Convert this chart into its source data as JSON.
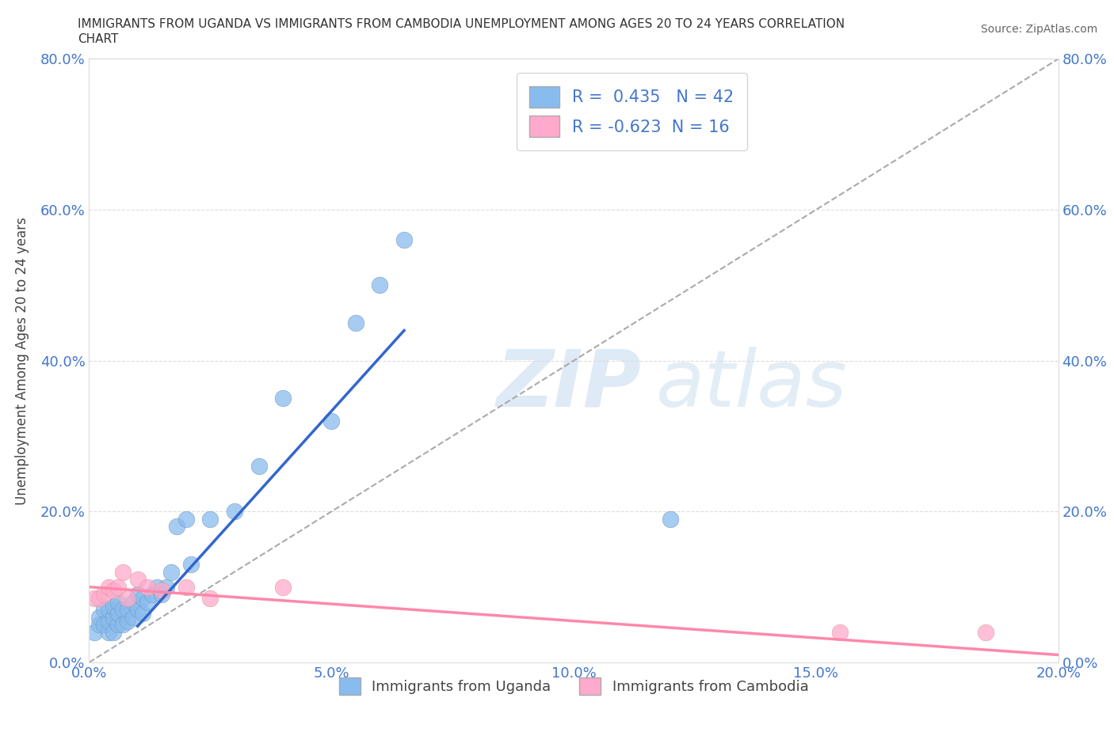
{
  "title_line1": "IMMIGRANTS FROM UGANDA VS IMMIGRANTS FROM CAMBODIA UNEMPLOYMENT AMONG AGES 20 TO 24 YEARS CORRELATION",
  "title_line2": "CHART",
  "source": "Source: ZipAtlas.com",
  "ylabel": "Unemployment Among Ages 20 to 24 years",
  "legend_label1": "Immigrants from Uganda",
  "legend_label2": "Immigrants from Cambodia",
  "r1": 0.435,
  "n1": 42,
  "r2": -0.623,
  "n2": 16,
  "color_uganda": "#88BBEE",
  "color_cambodia": "#FFAACC",
  "xlim": [
    0.0,
    0.2
  ],
  "ylim": [
    0.0,
    0.8
  ],
  "xticks": [
    0.0,
    0.05,
    0.1,
    0.15,
    0.2
  ],
  "yticks": [
    0.0,
    0.2,
    0.4,
    0.6,
    0.8
  ],
  "xtick_labels": [
    "0.0%",
    "5.0%",
    "10.0%",
    "15.0%",
    "20.0%"
  ],
  "ytick_labels": [
    "0.0%",
    "20.0%",
    "40.0%",
    "60.0%",
    "80.0%"
  ],
  "uganda_x": [
    0.001,
    0.002,
    0.002,
    0.003,
    0.003,
    0.004,
    0.004,
    0.004,
    0.005,
    0.005,
    0.005,
    0.006,
    0.006,
    0.006,
    0.007,
    0.007,
    0.008,
    0.008,
    0.009,
    0.009,
    0.01,
    0.01,
    0.011,
    0.011,
    0.012,
    0.013,
    0.014,
    0.015,
    0.016,
    0.017,
    0.018,
    0.02,
    0.021,
    0.025,
    0.03,
    0.035,
    0.04,
    0.05,
    0.055,
    0.06,
    0.065,
    0.12
  ],
  "uganda_y": [
    0.04,
    0.05,
    0.06,
    0.05,
    0.07,
    0.04,
    0.055,
    0.07,
    0.04,
    0.06,
    0.075,
    0.05,
    0.065,
    0.08,
    0.05,
    0.07,
    0.055,
    0.07,
    0.06,
    0.08,
    0.07,
    0.09,
    0.065,
    0.085,
    0.08,
    0.09,
    0.1,
    0.09,
    0.1,
    0.12,
    0.18,
    0.19,
    0.13,
    0.19,
    0.2,
    0.26,
    0.35,
    0.32,
    0.45,
    0.5,
    0.56,
    0.19
  ],
  "cambodia_x": [
    0.001,
    0.002,
    0.003,
    0.004,
    0.005,
    0.006,
    0.007,
    0.008,
    0.01,
    0.012,
    0.015,
    0.02,
    0.025,
    0.04,
    0.155,
    0.185
  ],
  "cambodia_y": [
    0.085,
    0.085,
    0.09,
    0.1,
    0.095,
    0.1,
    0.12,
    0.085,
    0.11,
    0.1,
    0.095,
    0.1,
    0.085,
    0.1,
    0.04,
    0.04
  ],
  "uganda_line_x": [
    0.01,
    0.065
  ],
  "uganda_line_y": [
    0.048,
    0.44
  ],
  "cambodia_line_x": [
    0.0,
    0.2
  ],
  "cambodia_line_y": [
    0.1,
    0.01
  ],
  "watermark_zip": "ZIP",
  "watermark_atlas": "atlas",
  "background_color": "#ffffff",
  "tick_color": "#4477CC",
  "grid_color": "#dddddd",
  "ref_line_color": "#aaaaaa",
  "uganda_line_color": "#3366CC",
  "cambodia_line_color": "#FF88AA"
}
